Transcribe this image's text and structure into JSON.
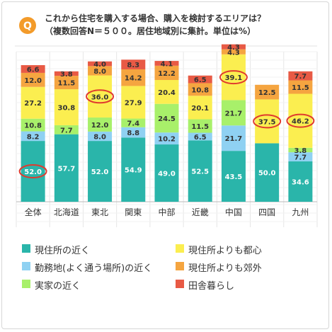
{
  "header": {
    "badge": "Q",
    "question_line1": "これから住宅を購入する場合、購入を検討するエリアは？",
    "question_line2": "（複数回答N＝５００。居住地域別に集計。単位は%）"
  },
  "colors": {
    "near_home": "#2ab5aa",
    "near_work": "#8fd1f2",
    "near_parents": "#a8f06a",
    "more_urban": "#fbee50",
    "more_suburban": "#f5a540",
    "countryside": "#e85a45",
    "highlight_ring": "#e03a2e",
    "title_badge": "#f39b2a"
  },
  "chart_data": {
    "type": "bar",
    "stacked": true,
    "categories": [
      "全体",
      "北海道",
      "東北",
      "関東",
      "中部",
      "近畿",
      "中国",
      "四国",
      "九州"
    ],
    "series": [
      {
        "name": "現住所の近く",
        "values": [
          52.0,
          57.7,
          52.0,
          54.9,
          49.0,
          52.5,
          43.5,
          50.0,
          34.6
        ]
      },
      {
        "name": "勤務地(よく通う場所)の近く",
        "values": [
          8.2,
          0,
          8.0,
          8.8,
          10.2,
          6.5,
          21.7,
          0,
          7.7
        ]
      },
      {
        "name": "実家の近く",
        "values": [
          10.8,
          7.7,
          12.0,
          7.4,
          24.5,
          11.5,
          21.7,
          0,
          3.8
        ]
      },
      {
        "name": "現住所よりも都心",
        "values": [
          27.2,
          30.8,
          36.0,
          27.9,
          20.4,
          20.1,
          39.1,
          37.5,
          46.2
        ]
      },
      {
        "name": "現住所よりも郊外",
        "values": [
          12.0,
          11.5,
          8.0,
          14.2,
          12.2,
          10.8,
          4.3,
          12.5,
          11.5
        ]
      },
      {
        "name": "田舎暮らし",
        "values": [
          6.6,
          3.8,
          4.0,
          8.3,
          4.1,
          6.5,
          4.3,
          0,
          7.7
        ]
      }
    ],
    "labels": [
      [
        "52.0",
        "8.2",
        "10.8",
        "27.2",
        "12.0",
        "6.6"
      ],
      [
        "57.7",
        "",
        "7.7",
        "30.8",
        "11.5",
        "3.8"
      ],
      [
        "52.0",
        "8.0",
        "12.0",
        "36.0",
        "8.0",
        "4.0"
      ],
      [
        "54.9",
        "8.8",
        "7.4",
        "27.9",
        "14.2",
        "8.3"
      ],
      [
        "49.0",
        "10.2",
        "24.5",
        "20.4",
        "12.2",
        "4.1"
      ],
      [
        "52.5",
        "6.5",
        "11.5",
        "20.1",
        "10.8",
        "6.5"
      ],
      [
        "43.5",
        "21.7",
        "21.7",
        "39.1",
        "4.3",
        "4.3"
      ],
      [
        "50.0",
        "",
        "",
        "37.5",
        "12.5",
        ""
      ],
      [
        "34.6",
        "7.7",
        "3.8",
        "46.2",
        "11.5",
        "7.7"
      ]
    ],
    "highlights": [
      {
        "category": 0,
        "series": 0
      },
      {
        "category": 2,
        "series": 3
      },
      {
        "category": 6,
        "series": 3
      },
      {
        "category": 7,
        "series": 3
      },
      {
        "category": 8,
        "series": 3
      }
    ],
    "grid": true,
    "legend_position": "bottom"
  }
}
